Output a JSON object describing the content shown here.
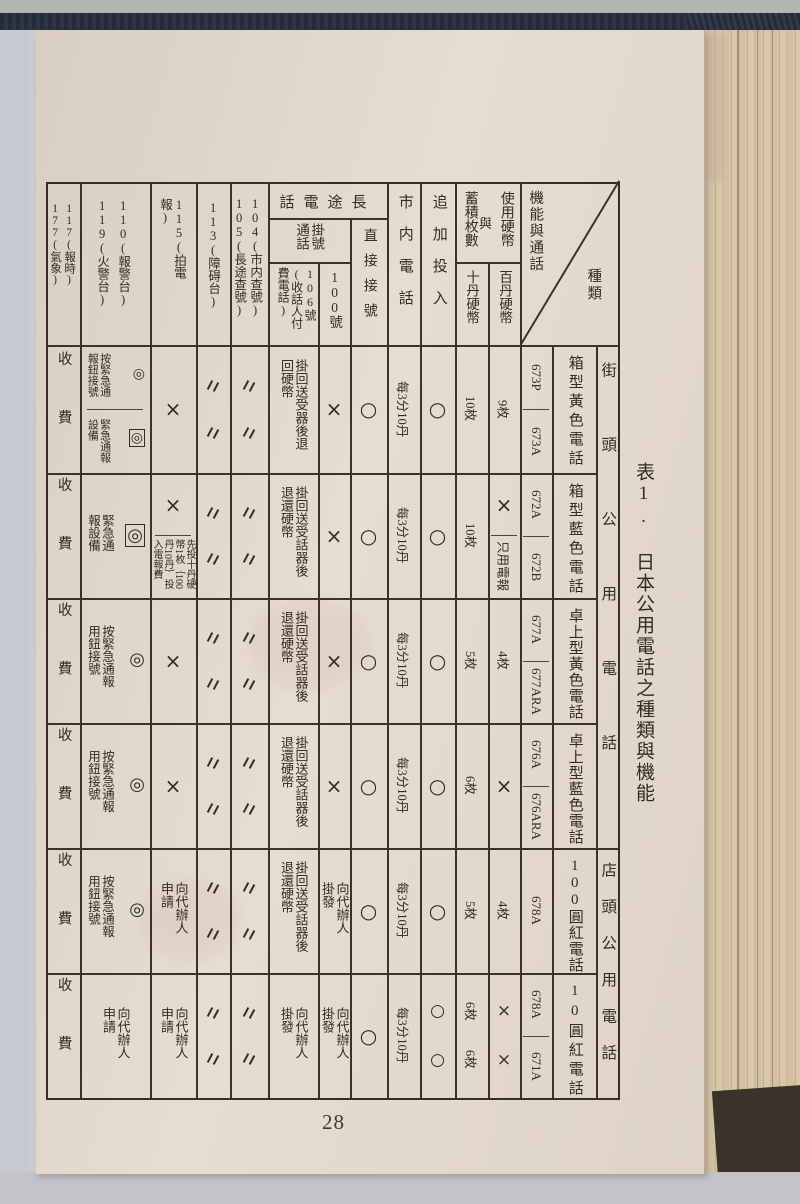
{
  "title": "表1. 日本公用電話之種類與機能",
  "page_number": "28",
  "colors": {
    "ink": "#332c24",
    "page_paper": "#e2d7cb",
    "cover_navy": "#262c38",
    "fore_edge_tan": "#d8c7ab"
  },
  "table": {
    "corner": {
      "axis_functions": "機能與通話",
      "axis_types": "種類"
    },
    "headers": {
      "coin_group_right": "使用硬幣",
      "coin_group_mid": "與",
      "coin_group_left": "蓄積枚數",
      "coin_100": "百丹硬幣",
      "coin_10": "十丹硬幣",
      "additional_insert": "追加投入",
      "local_call": "市内電話",
      "long_distance": "長途電話",
      "direct_dial": "直接接號",
      "operator_calls": "掛號通話",
      "no_100": "100號",
      "no_106": "106號(收話人付費電話)",
      "inquiry": [
        "104(市内查號)",
        "105(長途查號)"
      ],
      "fault": "113(障碍台)",
      "telegram": "115(拍電報)",
      "emergency": [
        "110(報警台)",
        "119(火警台)"
      ],
      "time_weather": [
        "117(報時)",
        "177(氣象)"
      ]
    },
    "row_groups": [
      {
        "label": "街頭公用電話"
      },
      {
        "label": "店頭公用電話"
      }
    ],
    "rows": [
      {
        "group": 0,
        "type_name": "箱型黃色電話",
        "models": [
          "673P",
          "673A"
        ],
        "cells": [
          {
            "c": "coin100",
            "k": "rot",
            "t": "9枚"
          },
          {
            "c": "coin10",
            "k": "rot",
            "t": "10枚"
          },
          {
            "c": "add",
            "k": "mark",
            "t": "○"
          },
          {
            "c": "local",
            "k": "rot",
            "t": "每3分10丹"
          },
          {
            "c": "direct",
            "k": "mark",
            "t": "○"
          },
          {
            "c": "n100",
            "k": "mark",
            "t": "×"
          },
          {
            "c": "n106",
            "k": "vert",
            "t": "掛回送受器後退回硬幣"
          },
          {
            "c": "q104",
            "k": "mark2",
            "t": "〃"
          },
          {
            "c": "f113",
            "k": "mark2",
            "t": "〃"
          },
          {
            "c": "t115",
            "k": "mark",
            "t": "×"
          },
          {
            "c": "e110",
            "k": "split2",
            "p": [
              {
                "k": "emg",
                "sym": "◎",
                "boxed": false,
                "t": "按緊急通報鈕接號"
              },
              {
                "k": "emg",
                "sym": "◎",
                "boxed": true,
                "t": "緊急通報設備"
              }
            ]
          },
          {
            "c": "w117",
            "k": "spread",
            "t": "收費"
          }
        ]
      },
      {
        "group": 0,
        "type_name": "箱型藍色電話",
        "models": [
          "672A",
          "672B"
        ],
        "cells": [
          {
            "c": "coin100",
            "k": "split2",
            "p": [
              {
                "k": "mark",
                "t": "×"
              },
              {
                "k": "rot",
                "t": "只用電報"
              }
            ]
          },
          {
            "c": "coin10",
            "k": "rot",
            "t": "10枚"
          },
          {
            "c": "add",
            "k": "mark",
            "t": "○"
          },
          {
            "c": "local",
            "k": "rot",
            "t": "每3分10丹"
          },
          {
            "c": "direct",
            "k": "mark",
            "t": "○"
          },
          {
            "c": "n100",
            "k": "mark",
            "t": "×"
          },
          {
            "c": "n106",
            "k": "vert",
            "t": "掛回送受話器後退還硬幣"
          },
          {
            "c": "q104",
            "k": "mark2",
            "t": "〃"
          },
          {
            "c": "f113",
            "k": "mark2",
            "t": "〃"
          },
          {
            "c": "t115",
            "k": "split2",
            "p": [
              {
                "k": "mark",
                "t": "×"
              },
              {
                "k": "vmix",
                "t": "先投十丹硬幣1枚｛100丹10丹｝投入電報費"
              }
            ]
          },
          {
            "c": "e110",
            "k": "emg",
            "sym": "◎",
            "boxed": true,
            "t": "緊急通報設備"
          },
          {
            "c": "w117",
            "k": "spread",
            "t": "收費"
          }
        ]
      },
      {
        "group": 0,
        "type_name": "卓上型黃色電話",
        "models": [
          "677A",
          "677ARA"
        ],
        "cells": [
          {
            "c": "coin100",
            "k": "rot",
            "t": "4枚"
          },
          {
            "c": "coin10",
            "k": "rot",
            "t": "5枚"
          },
          {
            "c": "add",
            "k": "mark",
            "t": "○"
          },
          {
            "c": "local",
            "k": "rot",
            "t": "每3分10丹"
          },
          {
            "c": "direct",
            "k": "mark",
            "t": "○"
          },
          {
            "c": "n100",
            "k": "mark",
            "t": "×"
          },
          {
            "c": "n106",
            "k": "vert",
            "t": "掛回送受話器後退還硬幣"
          },
          {
            "c": "q104",
            "k": "mark2",
            "t": "〃"
          },
          {
            "c": "f113",
            "k": "mark2",
            "t": "〃"
          },
          {
            "c": "t115",
            "k": "mark",
            "t": "×"
          },
          {
            "c": "e110",
            "k": "emg",
            "sym": "◎",
            "boxed": false,
            "t": "按緊急通報用鈕接號"
          },
          {
            "c": "w117",
            "k": "spread",
            "t": "收費"
          }
        ]
      },
      {
        "group": 0,
        "type_name": "卓上型藍色電話",
        "models": [
          "676A",
          "676ARA"
        ],
        "cells": [
          {
            "c": "coin100",
            "k": "mark",
            "t": "×"
          },
          {
            "c": "coin10",
            "k": "rot",
            "t": "6枚"
          },
          {
            "c": "add",
            "k": "mark",
            "t": "○"
          },
          {
            "c": "local",
            "k": "rot",
            "t": "每3分10丹"
          },
          {
            "c": "direct",
            "k": "mark",
            "t": "○"
          },
          {
            "c": "n100",
            "k": "mark",
            "t": "×"
          },
          {
            "c": "n106",
            "k": "vert",
            "t": "掛回送受話器後退還硬幣"
          },
          {
            "c": "q104",
            "k": "mark2",
            "t": "〃"
          },
          {
            "c": "f113",
            "k": "mark2",
            "t": "〃"
          },
          {
            "c": "t115",
            "k": "mark",
            "t": "×"
          },
          {
            "c": "e110",
            "k": "emg",
            "sym": "◎",
            "boxed": false,
            "t": "按緊急通報用鈕接號"
          },
          {
            "c": "w117",
            "k": "spread",
            "t": "收費"
          }
        ]
      },
      {
        "group": 1,
        "type_name": "100圓紅電話",
        "models": [
          "678A"
        ],
        "cells": [
          {
            "c": "coin100",
            "k": "rot",
            "t": "4枚"
          },
          {
            "c": "coin10",
            "k": "rot",
            "t": "5枚"
          },
          {
            "c": "add",
            "k": "mark",
            "t": "○"
          },
          {
            "c": "local",
            "k": "rot",
            "t": "每3分10丹"
          },
          {
            "c": "direct",
            "k": "mark",
            "t": "○"
          },
          {
            "c": "n100",
            "k": "vert",
            "t": "向代辦人掛發"
          },
          {
            "c": "n106",
            "k": "vert",
            "t": "掛回送受話器後退還硬幣"
          },
          {
            "c": "q104",
            "k": "mark2",
            "t": "〃"
          },
          {
            "c": "f113",
            "k": "mark2",
            "t": "〃"
          },
          {
            "c": "t115",
            "k": "vert",
            "t": "向代辦人申請"
          },
          {
            "c": "e110",
            "k": "emg",
            "sym": "◎",
            "boxed": false,
            "t": "按緊急通報用鈕接號"
          },
          {
            "c": "w117",
            "k": "spread",
            "t": "收費"
          }
        ]
      },
      {
        "group": 1,
        "type_name": "10圓紅電話",
        "models": [
          "678A",
          "671A"
        ],
        "cells": [
          {
            "c": "coin100",
            "k": "mark2",
            "t": "×"
          },
          {
            "c": "coin10",
            "k": "rot2",
            "t": "6枚",
            "t2": "6枚"
          },
          {
            "c": "add",
            "k": "mark2",
            "t": "○"
          },
          {
            "c": "local",
            "k": "rot",
            "t": "每3分10丹"
          },
          {
            "c": "direct",
            "k": "mark",
            "t": "○"
          },
          {
            "c": "n100",
            "k": "vert",
            "t": "向代辦人掛發"
          },
          {
            "c": "n106",
            "k": "vert",
            "t": "向代辦人掛發"
          },
          {
            "c": "q104",
            "k": "mark2",
            "t": "〃"
          },
          {
            "c": "f113",
            "k": "mark2",
            "t": "〃"
          },
          {
            "c": "t115",
            "k": "vert",
            "t": "向代辦人申請"
          },
          {
            "c": "e110",
            "k": "vert",
            "t": "向代辦人申請"
          },
          {
            "c": "w117",
            "k": "spread",
            "t": "收費"
          }
        ]
      }
    ]
  }
}
